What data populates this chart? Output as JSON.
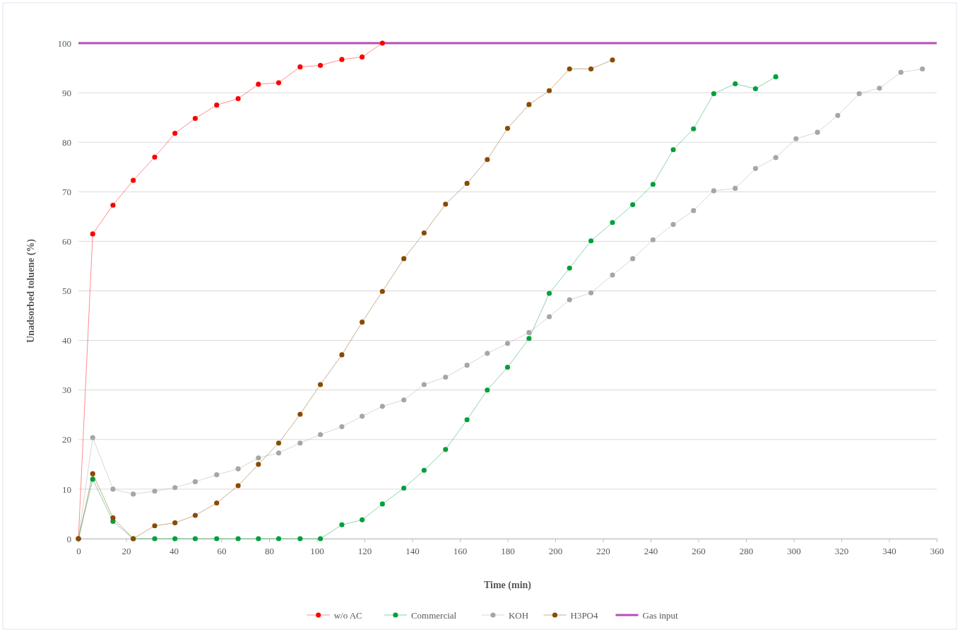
{
  "chart_data": {
    "type": "line",
    "xlabel": "Time (min)",
    "ylabel": "Unadsorbed toluene (%)",
    "xlim": [
      0,
      360
    ],
    "xticks": [
      0,
      20,
      40,
      60,
      80,
      100,
      120,
      140,
      160,
      180,
      200,
      220,
      240,
      260,
      280,
      300,
      320,
      340,
      360
    ],
    "ylim": [
      0,
      100
    ],
    "yticks": [
      0,
      10,
      20,
      30,
      40,
      50,
      60,
      70,
      80,
      90,
      100
    ],
    "grid": "y",
    "legend": "bottom",
    "marker": "circle",
    "series": [
      {
        "name": "w/o AC",
        "color": "#ff0000",
        "x": [
          0,
          6,
          14.5,
          23,
          32,
          40.5,
          49,
          58,
          67,
          75.5,
          84,
          93,
          101.5,
          110.5,
          119,
          127.5
        ],
        "values": [
          0,
          61.5,
          67.3,
          72.3,
          77,
          81.8,
          84.8,
          87.5,
          88.8,
          91.7,
          92,
          95.2,
          95.5,
          96.7,
          97.2,
          100
        ]
      },
      {
        "name": "Commercial",
        "color": "#00a03c",
        "x": [
          0,
          6,
          14.5,
          23,
          32,
          40.5,
          49,
          58,
          67,
          75.5,
          84,
          93,
          101.5,
          110.5,
          119,
          127.5,
          136.5,
          145,
          154,
          163,
          171.5,
          180,
          189,
          197.5,
          206,
          215,
          224,
          232.5,
          241,
          249.5,
          258,
          266.5,
          275.5,
          284,
          292.5
        ],
        "values": [
          0,
          12,
          3.5,
          0,
          0,
          0,
          0,
          0,
          0,
          0,
          0,
          0,
          0,
          2.8,
          3.8,
          7,
          10.2,
          13.8,
          18,
          24,
          30,
          34.6,
          40.4,
          49.5,
          54.6,
          60.1,
          63.8,
          67.4,
          71.5,
          78.5,
          82.7,
          89.8,
          91.8,
          90.8,
          93.2
        ]
      },
      {
        "name": "KOH",
        "color": "#a6a6a6",
        "x": [
          0,
          6,
          14.5,
          23,
          32,
          40.5,
          49,
          58,
          67,
          75.5,
          84,
          93,
          101.5,
          110.5,
          119,
          127.5,
          136.5,
          145,
          154,
          163,
          171.5,
          180,
          189,
          197.5,
          206,
          215,
          224,
          232.5,
          241,
          249.5,
          258,
          266.5,
          275.5,
          284,
          292.5,
          301,
          310,
          318.5,
          327.5,
          336,
          345,
          354
        ],
        "values": [
          0,
          20.4,
          10,
          9,
          9.6,
          10.3,
          11.5,
          12.9,
          14.1,
          16.3,
          17.3,
          19.3,
          21,
          22.6,
          24.7,
          26.7,
          28,
          31.1,
          32.6,
          35,
          37.4,
          39.4,
          41.6,
          44.8,
          48.2,
          49.6,
          53.2,
          56.5,
          60.3,
          63.4,
          66.2,
          70.2,
          70.7,
          74.7,
          76.9,
          80.7,
          82,
          85.4,
          89.8,
          90.9,
          94.1,
          94.8
        ]
      },
      {
        "name": "H3PO4",
        "color": "#8b4a00",
        "x": [
          0,
          6,
          14.5,
          23,
          32,
          40.5,
          49,
          58,
          67,
          75.5,
          84,
          93,
          101.5,
          110.5,
          119,
          127.5,
          136.5,
          145,
          154,
          163,
          171.5,
          180,
          189,
          197.5,
          206,
          215,
          224
        ],
        "values": [
          0,
          13.1,
          4.2,
          0,
          2.6,
          3.2,
          4.7,
          7.2,
          10.7,
          15,
          19.3,
          25.1,
          31.1,
          37.1,
          43.7,
          49.9,
          56.5,
          61.7,
          67.5,
          71.7,
          76.5,
          82.8,
          87.6,
          90.4,
          94.8,
          94.8,
          96.6
        ]
      },
      {
        "name": "Gas input",
        "color": "#b03cb0",
        "x": [
          0,
          360
        ],
        "values": [
          100,
          100
        ],
        "marker": "none"
      }
    ]
  }
}
